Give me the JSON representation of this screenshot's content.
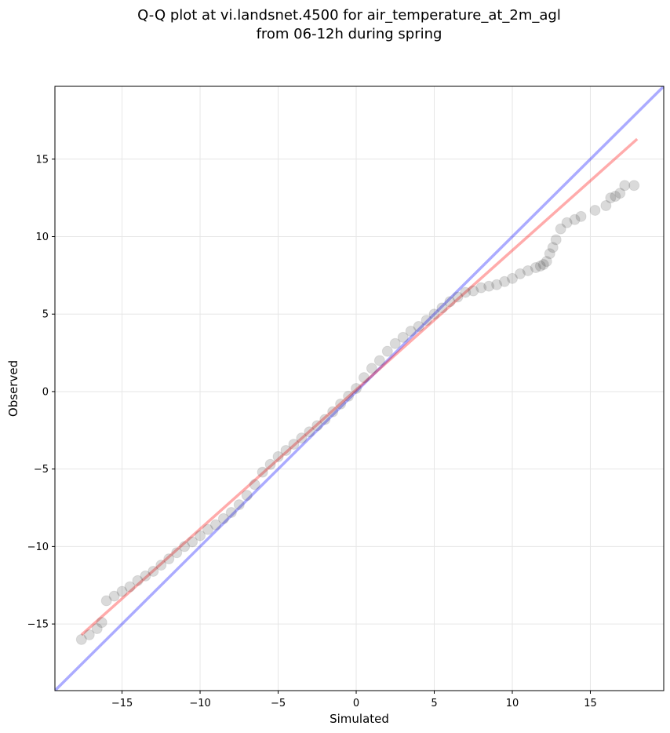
{
  "title": {
    "line1": "Q-Q plot at vi.landsnet.4500 for air_temperature_at_2m_agl",
    "line2": "from 06-12h during spring"
  },
  "chart_data": {
    "type": "scatter",
    "title": "Q-Q plot at vi.landsnet.4500 for air_temperature_at_2m_agl\nfrom 06-12h during spring",
    "xlabel": "Simulated",
    "ylabel": "Observed",
    "xlim": [
      -19.3,
      19.7
    ],
    "ylim": [
      -19.3,
      19.7
    ],
    "xticks": [
      -15,
      -10,
      -5,
      0,
      5,
      10,
      15
    ],
    "yticks": [
      -15,
      -10,
      -5,
      0,
      5,
      10,
      15
    ],
    "xtick_labels": [
      "−15",
      "−10",
      "−5",
      "0",
      "5",
      "10",
      "15"
    ],
    "ytick_labels": [
      "−15",
      "−10",
      "−5",
      "0",
      "5",
      "10",
      "15"
    ],
    "grid": true,
    "identity_line": {
      "color": "#0000ff",
      "alpha": 0.33
    },
    "fit_line": {
      "color": "#ff0000",
      "alpha": 0.33,
      "x": [
        -17.6,
        18.0
      ],
      "y": [
        -15.7,
        16.3
      ]
    },
    "point_color": "#333333",
    "quantiles": {
      "x": [
        -17.6,
        -17.1,
        -16.6,
        -16.3,
        -16.0,
        -15.5,
        -15.0,
        -14.5,
        -14.0,
        -13.5,
        -13.0,
        -12.5,
        -12.0,
        -11.5,
        -11.0,
        -10.5,
        -10.0,
        -9.5,
        -9.0,
        -8.5,
        -8.0,
        -7.5,
        -7.0,
        -6.5,
        -6.0,
        -5.5,
        -5.0,
        -4.5,
        -4.0,
        -3.5,
        -3.0,
        -2.5,
        -2.0,
        -1.5,
        -1.0,
        -0.5,
        0.0,
        0.5,
        1.0,
        1.5,
        2.0,
        2.5,
        3.0,
        3.5,
        4.0,
        4.5,
        5.0,
        5.5,
        6.0,
        6.5,
        7.0,
        7.5,
        8.0,
        8.5,
        9.0,
        9.5,
        10.0,
        10.5,
        11.0,
        11.5,
        11.8,
        12.0,
        12.2,
        12.4,
        12.6,
        12.8,
        13.1,
        13.5,
        14.0,
        14.4,
        15.3,
        16.0,
        16.3,
        16.6,
        16.9,
        17.2,
        17.8
      ],
      "y": [
        -16.0,
        -15.7,
        -15.3,
        -14.9,
        -13.5,
        -13.2,
        -12.9,
        -12.6,
        -12.2,
        -11.9,
        -11.6,
        -11.2,
        -10.8,
        -10.4,
        -10.0,
        -9.7,
        -9.3,
        -8.9,
        -8.6,
        -8.2,
        -7.8,
        -7.3,
        -6.7,
        -6.0,
        -5.2,
        -4.7,
        -4.2,
        -3.8,
        -3.4,
        -3.0,
        -2.6,
        -2.2,
        -1.8,
        -1.3,
        -0.8,
        -0.3,
        0.2,
        0.9,
        1.5,
        2.0,
        2.6,
        3.1,
        3.5,
        3.9,
        4.2,
        4.6,
        5.0,
        5.4,
        5.8,
        6.1,
        6.4,
        6.5,
        6.7,
        6.8,
        6.9,
        7.1,
        7.3,
        7.6,
        7.8,
        8.0,
        8.1,
        8.2,
        8.4,
        8.9,
        9.3,
        9.8,
        10.5,
        10.9,
        11.1,
        11.3,
        11.7,
        12.0,
        12.5,
        12.6,
        12.8,
        13.3,
        13.3
      ]
    }
  }
}
